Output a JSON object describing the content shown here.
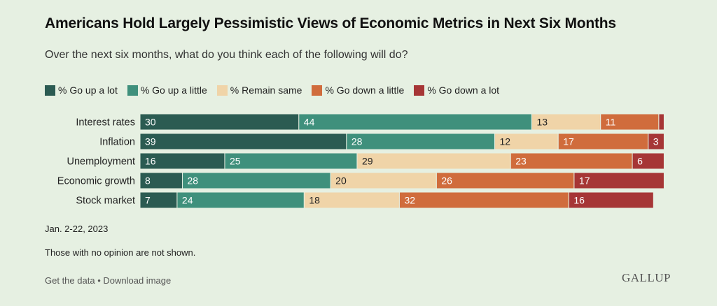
{
  "title": "Americans Hold Largely Pessimistic Views of Economic Metrics in Next Six Months",
  "subtitle": "Over the next six months, what do you think each of the following will do?",
  "date_note": "Jan. 2-22, 2023",
  "footnote": "Those with no opinion are not shown.",
  "footer": {
    "get_data": "Get the data",
    "separator": "•",
    "download": "Download image"
  },
  "brand": "GALLUP",
  "colors": {
    "go_up_a_lot": "#2b5b52",
    "go_up_a_little": "#3f907c",
    "remain_same": "#f0d4a8",
    "go_down_a_little": "#d06c3c",
    "go_down_a_lot": "#a63636"
  },
  "chart_data": {
    "type": "bar",
    "orientation": "horizontal",
    "stacked": true,
    "categories": [
      "Interest rates",
      "Inflation",
      "Unemployment",
      "Economic growth",
      "Stock market"
    ],
    "series": [
      {
        "name": "% Go up a lot",
        "color": "#2b5b52",
        "values": [
          30,
          39,
          16,
          8,
          7
        ]
      },
      {
        "name": "% Go up a little",
        "color": "#3f907c",
        "values": [
          44,
          28,
          25,
          28,
          24
        ]
      },
      {
        "name": "% Remain same",
        "color": "#f0d4a8",
        "values": [
          13,
          12,
          29,
          20,
          18
        ]
      },
      {
        "name": "% Go down a little",
        "color": "#d06c3c",
        "values": [
          11,
          17,
          23,
          26,
          32
        ]
      },
      {
        "name": "% Go down a lot",
        "color": "#a63636",
        "values": [
          1,
          3,
          6,
          17,
          16
        ]
      }
    ],
    "value_labels_hidden_for": [
      [
        0,
        4
      ]
    ],
    "xlim": [
      0,
      100
    ],
    "legend": "top-left",
    "grid": false
  }
}
